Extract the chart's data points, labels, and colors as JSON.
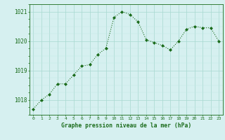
{
  "x": [
    0,
    1,
    2,
    3,
    4,
    5,
    6,
    7,
    8,
    9,
    10,
    11,
    12,
    13,
    14,
    15,
    16,
    17,
    18,
    19,
    20,
    21,
    22,
    23
  ],
  "y": [
    1017.7,
    1018.0,
    1018.2,
    1018.55,
    1018.55,
    1018.85,
    1019.15,
    1019.2,
    1019.55,
    1019.75,
    1020.8,
    1021.0,
    1020.9,
    1020.65,
    1020.05,
    1019.95,
    1019.85,
    1019.7,
    1020.0,
    1020.4,
    1020.5,
    1020.45,
    1020.45,
    1020.0
  ],
  "line_color": "#1a6b1a",
  "marker_color": "#1a6b1a",
  "bg_color": "#d6f0f0",
  "grid_color_major": "#a8d8d0",
  "grid_color_minor": "#c0e8e4",
  "xlabel": "Graphe pression niveau de la mer (hPa)",
  "xlabel_color": "#1a6b1a",
  "tick_color": "#1a6b1a",
  "axis_color": "#1a6b1a",
  "ylim": [
    1017.5,
    1021.25
  ],
  "yticks": [
    1018,
    1019,
    1020,
    1021
  ],
  "xlim": [
    -0.5,
    23.5
  ],
  "xticks": [
    0,
    1,
    2,
    3,
    4,
    5,
    6,
    7,
    8,
    9,
    10,
    11,
    12,
    13,
    14,
    15,
    16,
    17,
    18,
    19,
    20,
    21,
    22,
    23
  ]
}
